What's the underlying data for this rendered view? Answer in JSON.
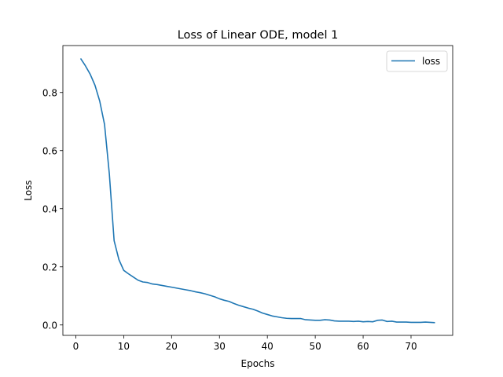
{
  "chart_data": {
    "type": "line",
    "title": "Loss of Linear ODE, model 1",
    "xlabel": "Epochs",
    "ylabel": "Loss",
    "xlim": [
      -2.7,
      78.7
    ],
    "ylim": [
      -0.0358,
      0.9615
    ],
    "xticks": [
      0,
      10,
      20,
      30,
      40,
      50,
      60,
      70
    ],
    "yticks": [
      0.0,
      0.2,
      0.4,
      0.6,
      0.8
    ],
    "xtick_labels": [
      "0",
      "10",
      "20",
      "30",
      "40",
      "50",
      "60",
      "70"
    ],
    "ytick_labels": [
      "0.0",
      "0.2",
      "0.4",
      "0.6",
      "0.8"
    ],
    "grid": false,
    "legend_position": "top-right",
    "series": [
      {
        "name": "loss",
        "color": "#1f77b4",
        "x": [
          1,
          2,
          3,
          4,
          5,
          6,
          7,
          8,
          9,
          10,
          11,
          12,
          13,
          14,
          15,
          16,
          17,
          18,
          19,
          20,
          21,
          22,
          23,
          24,
          25,
          26,
          27,
          28,
          29,
          30,
          31,
          32,
          33,
          34,
          35,
          36,
          37,
          38,
          39,
          40,
          41,
          42,
          43,
          44,
          45,
          46,
          47,
          48,
          49,
          50,
          51,
          52,
          53,
          54,
          55,
          56,
          57,
          58,
          59,
          60,
          61,
          62,
          63,
          64,
          65,
          66,
          67,
          68,
          69,
          70,
          71,
          72,
          73,
          74,
          75
        ],
        "y": [
          0.917,
          0.892,
          0.863,
          0.825,
          0.77,
          0.69,
          0.52,
          0.29,
          0.225,
          0.188,
          0.176,
          0.165,
          0.154,
          0.148,
          0.146,
          0.141,
          0.139,
          0.136,
          0.133,
          0.13,
          0.127,
          0.124,
          0.121,
          0.118,
          0.114,
          0.111,
          0.107,
          0.102,
          0.097,
          0.09,
          0.085,
          0.081,
          0.074,
          0.068,
          0.063,
          0.058,
          0.054,
          0.048,
          0.041,
          0.036,
          0.031,
          0.028,
          0.025,
          0.023,
          0.022,
          0.022,
          0.022,
          0.018,
          0.017,
          0.016,
          0.016,
          0.018,
          0.017,
          0.014,
          0.013,
          0.013,
          0.013,
          0.012,
          0.013,
          0.011,
          0.012,
          0.011,
          0.016,
          0.017,
          0.012,
          0.013,
          0.01,
          0.01,
          0.01,
          0.009,
          0.009,
          0.009,
          0.01,
          0.009,
          0.008
        ]
      }
    ]
  }
}
